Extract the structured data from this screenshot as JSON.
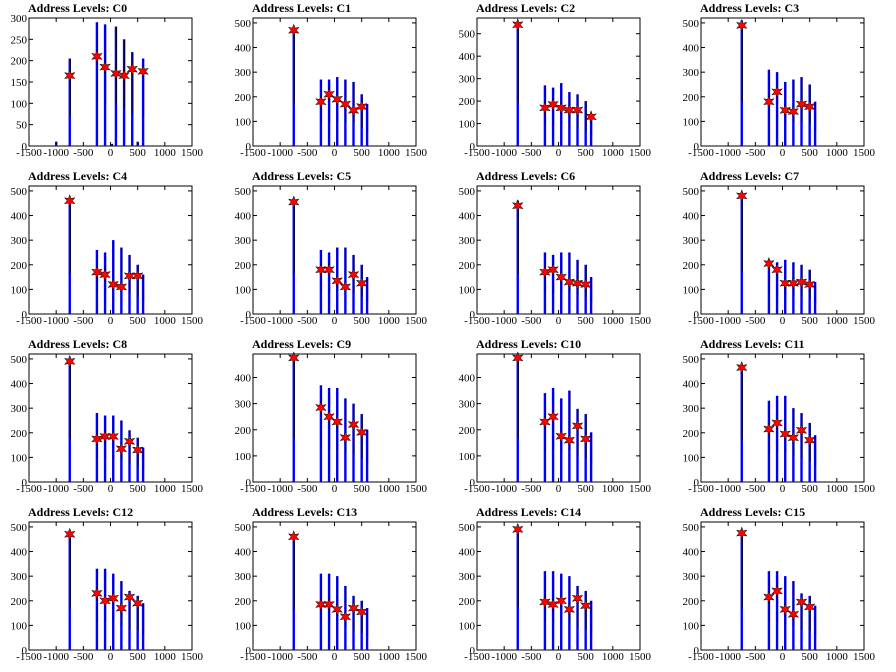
{
  "chart_data": [
    {
      "type": "bar",
      "title": "Address Levels: C0",
      "xlim": [
        -1500,
        1500
      ],
      "ylim": [
        0,
        300
      ],
      "xticks": [
        -1500,
        -1000,
        -500,
        0,
        500,
        1000,
        1500
      ],
      "yticks": [
        0,
        50,
        100,
        150,
        200,
        250,
        300
      ],
      "bars": [
        [
          -1000,
          10
        ],
        [
          -750,
          205
        ],
        [
          -250,
          290
        ],
        [
          -100,
          285
        ],
        [
          25,
          5
        ],
        [
          100,
          280
        ],
        [
          250,
          250
        ],
        [
          400,
          220
        ],
        [
          500,
          10
        ],
        [
          600,
          205
        ]
      ],
      "stars": [
        [
          -750,
          165
        ],
        [
          -250,
          210
        ],
        [
          -100,
          185
        ],
        [
          100,
          170
        ],
        [
          250,
          165
        ],
        [
          400,
          180
        ],
        [
          600,
          175
        ]
      ]
    },
    {
      "type": "bar",
      "title": "Address Levels: C1",
      "xlim": [
        -1500,
        1500
      ],
      "ylim": [
        0,
        520
      ],
      "xticks": [
        -1500,
        -1000,
        -500,
        0,
        500,
        1000,
        1500
      ],
      "yticks": [
        0,
        100,
        200,
        300,
        400,
        500
      ],
      "bars": [
        [
          -750,
          480
        ],
        [
          -250,
          270
        ],
        [
          -100,
          270
        ],
        [
          50,
          280
        ],
        [
          200,
          270
        ],
        [
          350,
          260
        ],
        [
          500,
          210
        ],
        [
          600,
          170
        ]
      ],
      "stars": [
        [
          -750,
          470
        ],
        [
          -250,
          180
        ],
        [
          -100,
          210
        ],
        [
          50,
          190
        ],
        [
          200,
          170
        ],
        [
          350,
          145
        ],
        [
          500,
          160
        ]
      ]
    },
    {
      "type": "bar",
      "title": "Address Levels: C2",
      "xlim": [
        -1500,
        1500
      ],
      "ylim": [
        0,
        570
      ],
      "xticks": [
        -1500,
        -1000,
        -500,
        0,
        500,
        1000,
        1500
      ],
      "yticks": [
        0,
        100,
        200,
        300,
        400,
        500
      ],
      "bars": [
        [
          -750,
          545
        ],
        [
          -250,
          270
        ],
        [
          -100,
          260
        ],
        [
          50,
          280
        ],
        [
          200,
          240
        ],
        [
          350,
          230
        ],
        [
          500,
          200
        ],
        [
          600,
          140
        ]
      ],
      "stars": [
        [
          -750,
          540
        ],
        [
          -250,
          170
        ],
        [
          -100,
          185
        ],
        [
          50,
          170
        ],
        [
          200,
          160
        ],
        [
          350,
          160
        ],
        [
          600,
          130
        ]
      ]
    },
    {
      "type": "bar",
      "title": "Address Levels: C3",
      "xlim": [
        -1500,
        1500
      ],
      "ylim": [
        0,
        520
      ],
      "xticks": [
        -1500,
        -1000,
        -500,
        0,
        500,
        1000,
        1500
      ],
      "yticks": [
        0,
        100,
        200,
        300,
        400,
        500
      ],
      "bars": [
        [
          -750,
          510
        ],
        [
          -250,
          310
        ],
        [
          -100,
          300
        ],
        [
          50,
          260
        ],
        [
          200,
          270
        ],
        [
          350,
          280
        ],
        [
          500,
          250
        ],
        [
          600,
          180
        ]
      ],
      "stars": [
        [
          -750,
          490
        ],
        [
          -250,
          180
        ],
        [
          -100,
          220
        ],
        [
          50,
          145
        ],
        [
          200,
          140
        ],
        [
          350,
          170
        ],
        [
          500,
          160
        ]
      ]
    },
    {
      "type": "bar",
      "title": "Address Levels: C4",
      "xlim": [
        -1500,
        1500
      ],
      "ylim": [
        0,
        520
      ],
      "xticks": [
        -1500,
        -1000,
        -500,
        0,
        500,
        1000,
        1500
      ],
      "yticks": [
        0,
        100,
        200,
        300,
        400,
        500
      ],
      "bars": [
        [
          -750,
          470
        ],
        [
          -250,
          260
        ],
        [
          -100,
          250
        ],
        [
          50,
          300
        ],
        [
          200,
          270
        ],
        [
          350,
          240
        ],
        [
          500,
          200
        ],
        [
          600,
          160
        ]
      ],
      "stars": [
        [
          -750,
          460
        ],
        [
          -250,
          170
        ],
        [
          -100,
          160
        ],
        [
          50,
          120
        ],
        [
          200,
          110
        ],
        [
          350,
          155
        ],
        [
          500,
          155
        ]
      ]
    },
    {
      "type": "bar",
      "title": "Address Levels: C5",
      "xlim": [
        -1500,
        1500
      ],
      "ylim": [
        0,
        520
      ],
      "xticks": [
        -1500,
        -1000,
        -500,
        0,
        500,
        1000,
        1500
      ],
      "yticks": [
        0,
        100,
        200,
        300,
        400,
        500
      ],
      "bars": [
        [
          -750,
          470
        ],
        [
          -250,
          260
        ],
        [
          -100,
          250
        ],
        [
          50,
          270
        ],
        [
          200,
          270
        ],
        [
          350,
          240
        ],
        [
          500,
          200
        ],
        [
          600,
          150
        ]
      ],
      "stars": [
        [
          -750,
          455
        ],
        [
          -250,
          180
        ],
        [
          -100,
          180
        ],
        [
          50,
          135
        ],
        [
          200,
          110
        ],
        [
          350,
          160
        ],
        [
          500,
          125
        ]
      ]
    },
    {
      "type": "bar",
      "title": "Address Levels: C6",
      "xlim": [
        -1500,
        1500
      ],
      "ylim": [
        0,
        520
      ],
      "xticks": [
        -1500,
        -1000,
        -500,
        0,
        500,
        1000,
        1500
      ],
      "yticks": [
        0,
        100,
        200,
        300,
        400,
        500
      ],
      "bars": [
        [
          -750,
          460
        ],
        [
          -250,
          250
        ],
        [
          -100,
          240
        ],
        [
          50,
          250
        ],
        [
          200,
          250
        ],
        [
          350,
          220
        ],
        [
          500,
          200
        ],
        [
          600,
          150
        ]
      ],
      "stars": [
        [
          -750,
          440
        ],
        [
          -250,
          170
        ],
        [
          -100,
          180
        ],
        [
          50,
          150
        ],
        [
          200,
          130
        ],
        [
          350,
          125
        ],
        [
          500,
          120
        ]
      ]
    },
    {
      "type": "bar",
      "title": "Address Levels: C7",
      "xlim": [
        -1500,
        1500
      ],
      "ylim": [
        0,
        520
      ],
      "xticks": [
        -1500,
        -1000,
        -500,
        0,
        500,
        1000,
        1500
      ],
      "yticks": [
        0,
        100,
        200,
        300,
        400,
        500
      ],
      "bars": [
        [
          -750,
          490
        ],
        [
          -250,
          220
        ],
        [
          -100,
          210
        ],
        [
          50,
          220
        ],
        [
          200,
          210
        ],
        [
          350,
          200
        ],
        [
          500,
          180
        ],
        [
          600,
          130
        ]
      ],
      "stars": [
        [
          -750,
          480
        ],
        [
          -250,
          205
        ],
        [
          -100,
          180
        ],
        [
          50,
          125
        ],
        [
          200,
          125
        ],
        [
          350,
          130
        ],
        [
          500,
          120
        ]
      ]
    },
    {
      "type": "bar",
      "title": "Address Levels: C8",
      "xlim": [
        -1500,
        1500
      ],
      "ylim": [
        0,
        520
      ],
      "xticks": [
        -1500,
        -1000,
        -500,
        0,
        500,
        1000,
        1500
      ],
      "yticks": [
        0,
        100,
        200,
        300,
        400,
        500
      ],
      "bars": [
        [
          -750,
          500
        ],
        [
          -250,
          280
        ],
        [
          -100,
          270
        ],
        [
          50,
          270
        ],
        [
          200,
          250
        ],
        [
          350,
          210
        ],
        [
          500,
          180
        ],
        [
          600,
          140
        ]
      ],
      "stars": [
        [
          -750,
          490
        ],
        [
          -250,
          175
        ],
        [
          -100,
          185
        ],
        [
          50,
          185
        ],
        [
          200,
          135
        ],
        [
          350,
          165
        ],
        [
          500,
          130
        ]
      ]
    },
    {
      "type": "bar",
      "title": "Address Levels: C9",
      "xlim": [
        -1500,
        1500
      ],
      "ylim": [
        0,
        490
      ],
      "xticks": [
        -1500,
        -1000,
        -500,
        0,
        500,
        1000,
        1500
      ],
      "yticks": [
        0,
        100,
        200,
        300,
        400
      ],
      "bars": [
        [
          -750,
          480
        ],
        [
          -250,
          370
        ],
        [
          -100,
          360
        ],
        [
          50,
          360
        ],
        [
          200,
          320
        ],
        [
          350,
          300
        ],
        [
          500,
          260
        ],
        [
          600,
          200
        ]
      ],
      "stars": [
        [
          -750,
          475
        ],
        [
          -250,
          285
        ],
        [
          -100,
          250
        ],
        [
          50,
          230
        ],
        [
          200,
          170
        ],
        [
          350,
          220
        ],
        [
          500,
          190
        ]
      ]
    },
    {
      "type": "bar",
      "title": "Address Levels: C10",
      "xlim": [
        -1500,
        1500
      ],
      "ylim": [
        0,
        490
      ],
      "xticks": [
        -1500,
        -1000,
        -500,
        0,
        500,
        1000,
        1500
      ],
      "yticks": [
        0,
        100,
        200,
        300,
        400
      ],
      "bars": [
        [
          -750,
          480
        ],
        [
          -250,
          340
        ],
        [
          -100,
          360
        ],
        [
          50,
          320
        ],
        [
          200,
          350
        ],
        [
          350,
          280
        ],
        [
          500,
          260
        ],
        [
          600,
          190
        ]
      ],
      "stars": [
        [
          -750,
          475
        ],
        [
          -250,
          230
        ],
        [
          -100,
          250
        ],
        [
          50,
          175
        ],
        [
          200,
          160
        ],
        [
          350,
          215
        ],
        [
          500,
          165
        ]
      ]
    },
    {
      "type": "bar",
      "title": "Address Levels: C11",
      "xlim": [
        -1500,
        1500
      ],
      "ylim": [
        0,
        520
      ],
      "xticks": [
        -1500,
        -1000,
        -500,
        0,
        500,
        1000,
        1500
      ],
      "yticks": [
        0,
        100,
        200,
        300,
        400,
        500
      ],
      "bars": [
        [
          -750,
          480
        ],
        [
          -250,
          330
        ],
        [
          -100,
          350
        ],
        [
          50,
          350
        ],
        [
          200,
          300
        ],
        [
          350,
          280
        ],
        [
          500,
          240
        ],
        [
          600,
          190
        ]
      ],
      "stars": [
        [
          -750,
          465
        ],
        [
          -250,
          215
        ],
        [
          -100,
          240
        ],
        [
          50,
          195
        ],
        [
          200,
          180
        ],
        [
          350,
          210
        ],
        [
          500,
          170
        ]
      ]
    },
    {
      "type": "bar",
      "title": "Address Levels: C12",
      "xlim": [
        -1500,
        1500
      ],
      "ylim": [
        0,
        520
      ],
      "xticks": [
        -1500,
        -1000,
        -500,
        0,
        500,
        1000,
        1500
      ],
      "yticks": [
        0,
        100,
        200,
        300,
        400,
        500
      ],
      "bars": [
        [
          -750,
          480
        ],
        [
          -250,
          330
        ],
        [
          -100,
          330
        ],
        [
          50,
          310
        ],
        [
          200,
          280
        ],
        [
          350,
          240
        ],
        [
          500,
          220
        ],
        [
          600,
          190
        ]
      ],
      "stars": [
        [
          -750,
          470
        ],
        [
          -250,
          230
        ],
        [
          -100,
          200
        ],
        [
          50,
          210
        ],
        [
          200,
          170
        ],
        [
          350,
          215
        ],
        [
          500,
          190
        ]
      ]
    },
    {
      "type": "bar",
      "title": "Address Levels: C13",
      "xlim": [
        -1500,
        1500
      ],
      "ylim": [
        0,
        520
      ],
      "xticks": [
        -1500,
        -1000,
        -500,
        0,
        500,
        1000,
        1500
      ],
      "yticks": [
        0,
        100,
        200,
        300,
        400,
        500
      ],
      "bars": [
        [
          -750,
          470
        ],
        [
          -250,
          310
        ],
        [
          -100,
          310
        ],
        [
          50,
          300
        ],
        [
          200,
          260
        ],
        [
          350,
          220
        ],
        [
          500,
          200
        ],
        [
          600,
          170
        ]
      ],
      "stars": [
        [
          -750,
          460
        ],
        [
          -250,
          185
        ],
        [
          -100,
          185
        ],
        [
          50,
          165
        ],
        [
          200,
          135
        ],
        [
          350,
          170
        ],
        [
          500,
          155
        ]
      ]
    },
    {
      "type": "bar",
      "title": "Address Levels: C14",
      "xlim": [
        -1500,
        1500
      ],
      "ylim": [
        0,
        520
      ],
      "xticks": [
        -1500,
        -1000,
        -500,
        0,
        500,
        1000,
        1500
      ],
      "yticks": [
        0,
        100,
        200,
        300,
        400,
        500
      ],
      "bars": [
        [
          -750,
          500
        ],
        [
          -250,
          320
        ],
        [
          -100,
          320
        ],
        [
          50,
          310
        ],
        [
          200,
          300
        ],
        [
          350,
          260
        ],
        [
          500,
          240
        ],
        [
          600,
          200
        ]
      ],
      "stars": [
        [
          -750,
          490
        ],
        [
          -250,
          195
        ],
        [
          -100,
          185
        ],
        [
          50,
          200
        ],
        [
          200,
          165
        ],
        [
          350,
          210
        ],
        [
          500,
          180
        ]
      ]
    },
    {
      "type": "bar",
      "title": "Address Levels: C15",
      "xlim": [
        -1500,
        1500
      ],
      "ylim": [
        0,
        520
      ],
      "xticks": [
        -1500,
        -1000,
        -500,
        0,
        500,
        1000,
        1500
      ],
      "yticks": [
        0,
        100,
        200,
        300,
        400,
        500
      ],
      "bars": [
        [
          -750,
          480
        ],
        [
          -250,
          320
        ],
        [
          -100,
          320
        ],
        [
          50,
          300
        ],
        [
          200,
          280
        ],
        [
          350,
          230
        ],
        [
          500,
          220
        ],
        [
          600,
          180
        ]
      ],
      "stars": [
        [
          -750,
          475
        ],
        [
          -250,
          215
        ],
        [
          -100,
          240
        ],
        [
          50,
          165
        ],
        [
          200,
          145
        ],
        [
          350,
          195
        ],
        [
          500,
          175
        ]
      ]
    }
  ],
  "colors": {
    "bar": "#0000ff",
    "bar_dark": "#000000",
    "star_fill": "#ff0000",
    "star_stroke": "#000000",
    "axis": "#000000"
  }
}
